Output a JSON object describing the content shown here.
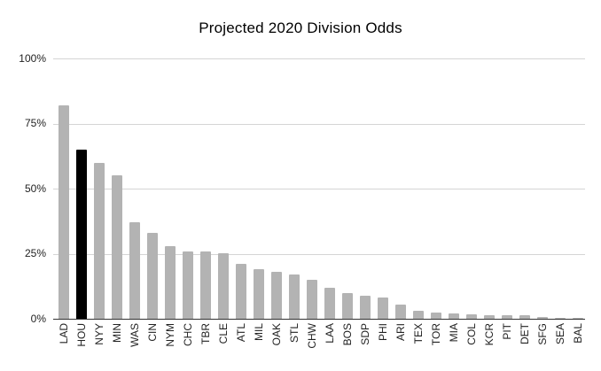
{
  "chart_data": {
    "type": "bar",
    "title": "Projected 2020 Division Odds",
    "categories": [
      "LAD",
      "HOU",
      "NYY",
      "MIN",
      "WAS",
      "CIN",
      "NYM",
      "CHC",
      "TBR",
      "CLE",
      "ATL",
      "MIL",
      "OAK",
      "STL",
      "CHW",
      "LAA",
      "BOS",
      "SDP",
      "PHI",
      "ARI",
      "TEX",
      "TOR",
      "MIA",
      "COL",
      "KCR",
      "PIT",
      "DET",
      "SFG",
      "SEA",
      "BAL"
    ],
    "values": [
      82,
      65,
      60,
      55,
      37,
      33,
      28,
      26,
      26,
      25,
      21,
      19,
      18,
      17,
      15,
      12,
      10,
      9,
      8,
      5.5,
      3,
      2.5,
      2,
      1.8,
      1.5,
      1.5,
      1.2,
      0.7,
      0.5,
      0.2
    ],
    "highlighted_category": "HOU",
    "bar_color": "#b3b3b3",
    "highlight_color": "#000000",
    "yticks": [
      {
        "label": "100%",
        "value": 100
      },
      {
        "label": "75%",
        "value": 75
      },
      {
        "label": "50%",
        "value": 50
      },
      {
        "label": "25%",
        "value": 25
      },
      {
        "label": "0%",
        "value": 0
      }
    ],
    "ylim": [
      0,
      100
    ],
    "grid": true,
    "legend": "none",
    "xlabel": "",
    "ylabel": ""
  }
}
